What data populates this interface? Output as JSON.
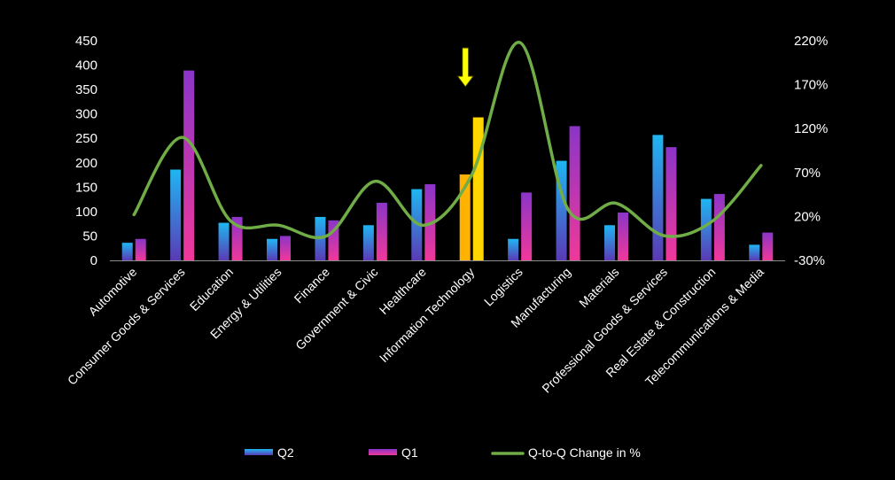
{
  "chart_data": {
    "type": "bar",
    "categories": [
      "Automotive",
      "Consumer Goods & Services",
      "Education",
      "Energy & Utilities",
      "Finance",
      "Government & Civic",
      "Healthcare",
      "Information Technology",
      "Logistics",
      "Manufacturing",
      "Materials",
      "Professional Goods & Services",
      "Real Estate & Construction",
      "Telecommunications & Media"
    ],
    "series": [
      {
        "name": "Q2",
        "axis": "left",
        "values": [
          36,
          186,
          77,
          44,
          89,
          72,
          146,
          176,
          44,
          204,
          72,
          257,
          126,
          32
        ]
      },
      {
        "name": "Q1",
        "axis": "left",
        "values": [
          44,
          389,
          89,
          50,
          82,
          118,
          156,
          293,
          139,
          275,
          98,
          232,
          136,
          57
        ]
      },
      {
        "name": "Q-to-Q Change in %",
        "type": "line",
        "axis": "right",
        "values": [
          22,
          110,
          15,
          10,
          -2,
          60,
          10,
          67,
          218,
          28,
          35,
          -2,
          15,
          78
        ]
      }
    ],
    "highlight_category": "Information Technology",
    "y_left": {
      "ylim": [
        0,
        450
      ],
      "ticks": [
        "0",
        "50",
        "100",
        "150",
        "200",
        "250",
        "300",
        "350",
        "400",
        "450"
      ]
    },
    "y_right": {
      "ylim": [
        -30,
        220
      ],
      "ticks": [
        "-30%",
        "20%",
        "70%",
        "120%",
        "170%",
        "220%"
      ]
    },
    "grid": false,
    "legend_position": "bottom",
    "colors": {
      "background": "#000000",
      "q2_top": "#1fb6f2",
      "q2_bottom": "#5a3ab5",
      "q1_top": "#8b35c8",
      "q1_bottom": "#f0389a",
      "highlight_q2": "#ffb300",
      "highlight_q1": "#ffd600",
      "line": "#70ad47",
      "arrow": "#ffff00"
    }
  }
}
